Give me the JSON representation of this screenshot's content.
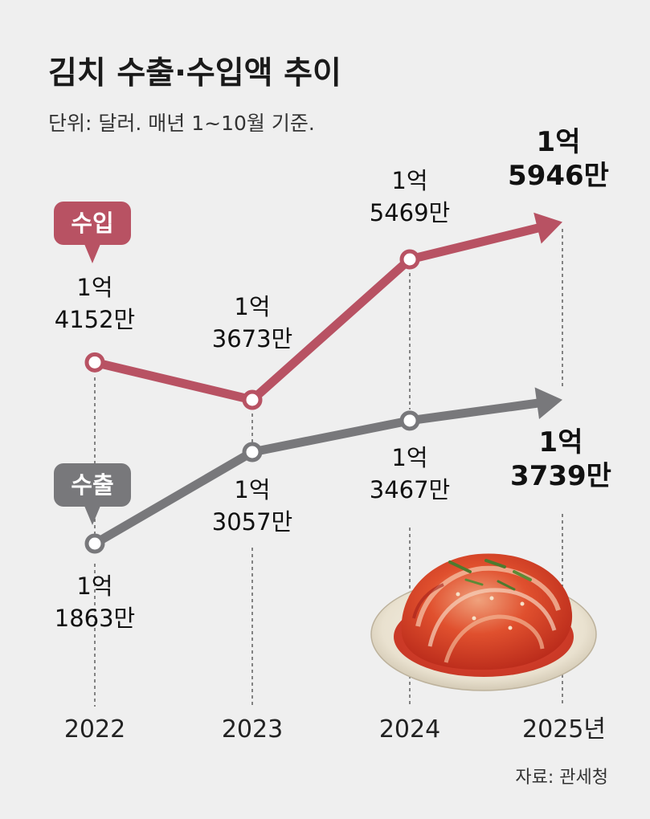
{
  "chart_data": {
    "type": "line",
    "title": "김치 수출·수입액 추이",
    "subtitle": "단위: 달러. 매년 1~10월 기준.",
    "categories": [
      "2022",
      "2023",
      "2024",
      "2025년"
    ],
    "series": [
      {
        "name": "수입",
        "color": "#b85263",
        "values": [
          141520000,
          136730000,
          154690000,
          159460000
        ],
        "labels": [
          [
            "1억",
            "4152만"
          ],
          [
            "1억",
            "3673만"
          ],
          [
            "1억",
            "5469만"
          ],
          [
            "1억",
            "5946만"
          ]
        ]
      },
      {
        "name": "수출",
        "color": "#78787b",
        "values": [
          118630000,
          130570000,
          134670000,
          137390000
        ],
        "labels": [
          [
            "1억",
            "1863만"
          ],
          [
            "1억",
            "3057만"
          ],
          [
            "1억",
            "3467만"
          ],
          [
            "1억",
            "3739만"
          ]
        ]
      }
    ],
    "source": "자료: 관세청",
    "illustration": "kimchi-on-plate"
  }
}
